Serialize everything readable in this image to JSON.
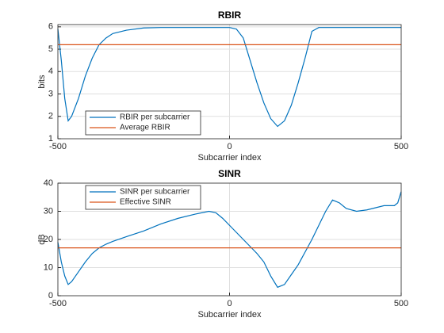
{
  "chart_data": [
    {
      "type": "line",
      "title": "RBIR",
      "xlabel": "Subcarrier index",
      "ylabel": "bits",
      "x": [
        -500,
        -490,
        -480,
        -470,
        -460,
        -440,
        -420,
        -400,
        -380,
        -360,
        -340,
        -300,
        -250,
        -200,
        -150,
        -100,
        -60,
        -40,
        -20,
        0,
        20,
        40,
        60,
        80,
        100,
        120,
        140,
        160,
        180,
        200,
        220,
        240,
        260,
        280,
        300,
        320,
        340,
        370,
        400,
        450,
        480,
        490,
        500
      ],
      "series": [
        {
          "name": "RBIR per subcarrier",
          "color": "#0072BD",
          "values": [
            5.9,
            4.5,
            2.8,
            1.8,
            2.0,
            2.8,
            3.8,
            4.6,
            5.2,
            5.5,
            5.7,
            5.85,
            5.95,
            5.97,
            5.97,
            5.97,
            5.97,
            5.97,
            5.97,
            5.97,
            5.9,
            5.5,
            4.5,
            3.5,
            2.6,
            1.9,
            1.55,
            1.8,
            2.5,
            3.5,
            4.6,
            5.8,
            5.97,
            5.97,
            5.97,
            5.97,
            5.97,
            5.97,
            5.97,
            5.97,
            5.97,
            5.97,
            5.97
          ]
        },
        {
          "name": "Average RBIR",
          "color": "#D95319",
          "values": [
            5.2,
            5.2,
            5.2,
            5.2,
            5.2,
            5.2,
            5.2,
            5.2,
            5.2,
            5.2,
            5.2,
            5.2,
            5.2,
            5.2,
            5.2,
            5.2,
            5.2,
            5.2,
            5.2,
            5.2,
            5.2,
            5.2,
            5.2,
            5.2,
            5.2,
            5.2,
            5.2,
            5.2,
            5.2,
            5.2,
            5.2,
            5.2,
            5.2,
            5.2,
            5.2,
            5.2,
            5.2,
            5.2,
            5.2,
            5.2,
            5.2,
            5.2,
            5.2
          ]
        }
      ],
      "xlim": [
        -500,
        500
      ],
      "xticks": [
        -500,
        0,
        500
      ],
      "ylim": [
        1,
        6.1
      ],
      "yticks": [
        1,
        2,
        3,
        4,
        5,
        6
      ],
      "grid": true,
      "legend": "southwest"
    },
    {
      "type": "line",
      "title": "SINR",
      "xlabel": "Subcarrier index",
      "ylabel": "dB",
      "x": [
        -500,
        -490,
        -480,
        -470,
        -460,
        -440,
        -420,
        -400,
        -380,
        -360,
        -340,
        -300,
        -250,
        -200,
        -150,
        -100,
        -60,
        -40,
        -20,
        0,
        20,
        40,
        60,
        80,
        100,
        120,
        140,
        160,
        180,
        200,
        220,
        240,
        260,
        280,
        300,
        320,
        340,
        370,
        400,
        450,
        480,
        490,
        500
      ],
      "series": [
        {
          "name": "SINR per subcarrier",
          "color": "#0072BD",
          "values": [
            19,
            12,
            7,
            4,
            5,
            8.5,
            12,
            15,
            17,
            18.3,
            19.3,
            21,
            23,
            25.5,
            27.5,
            29,
            30,
            29.5,
            27.5,
            25,
            22.5,
            20,
            17.5,
            15,
            12,
            7,
            3,
            4,
            7.5,
            11,
            15.5,
            20,
            25,
            30,
            34,
            33,
            31,
            30,
            30.5,
            32,
            32,
            33,
            37
          ]
        },
        {
          "name": "Effective SINR",
          "color": "#D95319",
          "values": [
            17,
            17,
            17,
            17,
            17,
            17,
            17,
            17,
            17,
            17,
            17,
            17,
            17,
            17,
            17,
            17,
            17,
            17,
            17,
            17,
            17,
            17,
            17,
            17,
            17,
            17,
            17,
            17,
            17,
            17,
            17,
            17,
            17,
            17,
            17,
            17,
            17,
            17,
            17,
            17,
            17,
            17,
            17
          ]
        }
      ],
      "xlim": [
        -500,
        500
      ],
      "xticks": [
        -500,
        0,
        500
      ],
      "ylim": [
        0,
        40
      ],
      "yticks": [
        0,
        10,
        20,
        30,
        40
      ],
      "grid": true,
      "legend": "northwest"
    }
  ]
}
